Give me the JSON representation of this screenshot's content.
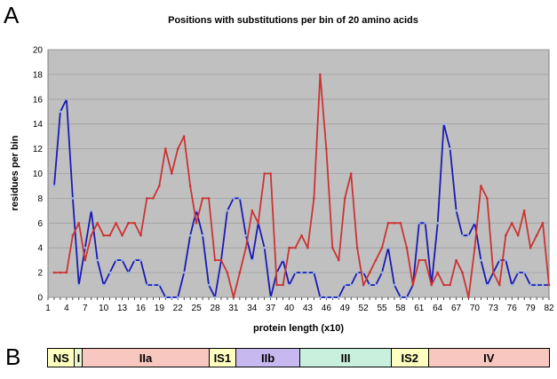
{
  "panel_a_letter": "A",
  "panel_b_letter": "B",
  "chart_data": {
    "type": "line",
    "title": "Positions with substitutions per bin of 20 amino acids",
    "xlabel": "protein length (x10)",
    "ylabel": "residues per bin",
    "ylim": [
      0,
      20
    ],
    "yticks": [
      0,
      2,
      4,
      6,
      8,
      10,
      12,
      14,
      16,
      18,
      20
    ],
    "xlim": [
      1,
      82
    ],
    "xticks": [
      1,
      4,
      7,
      10,
      13,
      16,
      19,
      22,
      25,
      28,
      31,
      34,
      37,
      40,
      43,
      46,
      49,
      52,
      55,
      58,
      61,
      64,
      67,
      70,
      73,
      76,
      79,
      82
    ],
    "grid": "horizontal",
    "legend": "none",
    "series": [
      {
        "color": "#1a1ab5",
        "marker_color": "#8fb4e8",
        "x": [
          2,
          3,
          4,
          5,
          6,
          7,
          8,
          9,
          10,
          11,
          12,
          13,
          14,
          15,
          16,
          17,
          18,
          19,
          20,
          21,
          22,
          23,
          24,
          25,
          26,
          27,
          28,
          29,
          30,
          31,
          32,
          33,
          34,
          35,
          36,
          37,
          38,
          39,
          40,
          41,
          42,
          43,
          44,
          45,
          46,
          47,
          48,
          49,
          50,
          51,
          52,
          53,
          54,
          55,
          56,
          57,
          58,
          59,
          60,
          61,
          62,
          63,
          64,
          65,
          66,
          67,
          68,
          69,
          70,
          71,
          72,
          73,
          74,
          75,
          76,
          77,
          78,
          79,
          80,
          81,
          82
        ],
        "values": [
          9,
          15,
          16,
          8,
          1,
          4,
          7,
          3,
          1,
          2,
          3,
          3,
          2,
          3,
          3,
          1,
          1,
          1,
          0,
          0,
          0,
          2,
          5,
          7,
          5,
          1,
          0,
          3,
          7,
          8,
          8,
          5,
          3,
          6,
          4,
          0,
          2,
          3,
          1,
          2,
          2,
          2,
          2,
          0,
          0,
          0,
          0,
          1,
          1,
          2,
          2,
          1,
          1,
          2,
          4,
          1,
          0,
          0,
          1,
          6,
          6,
          1,
          6,
          14,
          12,
          7,
          5,
          5,
          6,
          3,
          1,
          2,
          3,
          3,
          1,
          2,
          2,
          1,
          1,
          1,
          1
        ]
      },
      {
        "color": "#cc3333",
        "marker_color": "#cc3333",
        "x": [
          2,
          3,
          4,
          5,
          6,
          7,
          8,
          9,
          10,
          11,
          12,
          13,
          14,
          15,
          16,
          17,
          18,
          19,
          20,
          21,
          22,
          23,
          24,
          25,
          26,
          27,
          28,
          29,
          30,
          31,
          32,
          33,
          34,
          35,
          36,
          37,
          38,
          39,
          40,
          41,
          42,
          43,
          44,
          45,
          46,
          47,
          48,
          49,
          50,
          51,
          52,
          53,
          54,
          55,
          56,
          57,
          58,
          59,
          60,
          61,
          62,
          63,
          64,
          65,
          66,
          67,
          68,
          69,
          70,
          71,
          72,
          73,
          74,
          75,
          76,
          77,
          78,
          79,
          80,
          81,
          82
        ],
        "values": [
          2,
          2,
          2,
          5,
          6,
          3,
          5,
          6,
          5,
          5,
          6,
          5,
          6,
          6,
          5,
          8,
          8,
          9,
          12,
          10,
          12,
          13,
          9,
          6,
          8,
          8,
          3,
          3,
          2,
          0,
          2,
          4,
          7,
          6,
          10,
          10,
          1,
          1,
          4,
          4,
          5,
          4,
          8,
          18,
          12,
          4,
          3,
          8,
          10,
          4,
          1,
          2,
          3,
          4,
          6,
          6,
          6,
          4,
          1,
          3,
          3,
          1,
          2,
          1,
          1,
          3,
          2,
          0,
          4,
          9,
          8,
          2,
          1,
          5,
          6,
          5,
          7,
          4,
          5,
          6,
          1
        ]
      }
    ]
  },
  "domain_bar": {
    "segments": [
      {
        "label": "NS",
        "color": "#ffffc0",
        "width_frac": 0.054
      },
      {
        "label": "I",
        "color": "#e9f7d0",
        "width_frac": 0.016
      },
      {
        "label": "IIa",
        "color": "#f8c8c0",
        "width_frac": 0.252
      },
      {
        "label": "IS1",
        "color": "#ffffc0",
        "width_frac": 0.054
      },
      {
        "label": "IIb",
        "color": "#c8b8f0",
        "width_frac": 0.128
      },
      {
        "label": "III",
        "color": "#c8f0dc",
        "width_frac": 0.182
      },
      {
        "label": "IS2",
        "color": "#ffffc0",
        "width_frac": 0.074
      },
      {
        "label": "IV",
        "color": "#f8c8c0",
        "width_frac": 0.24
      }
    ]
  }
}
